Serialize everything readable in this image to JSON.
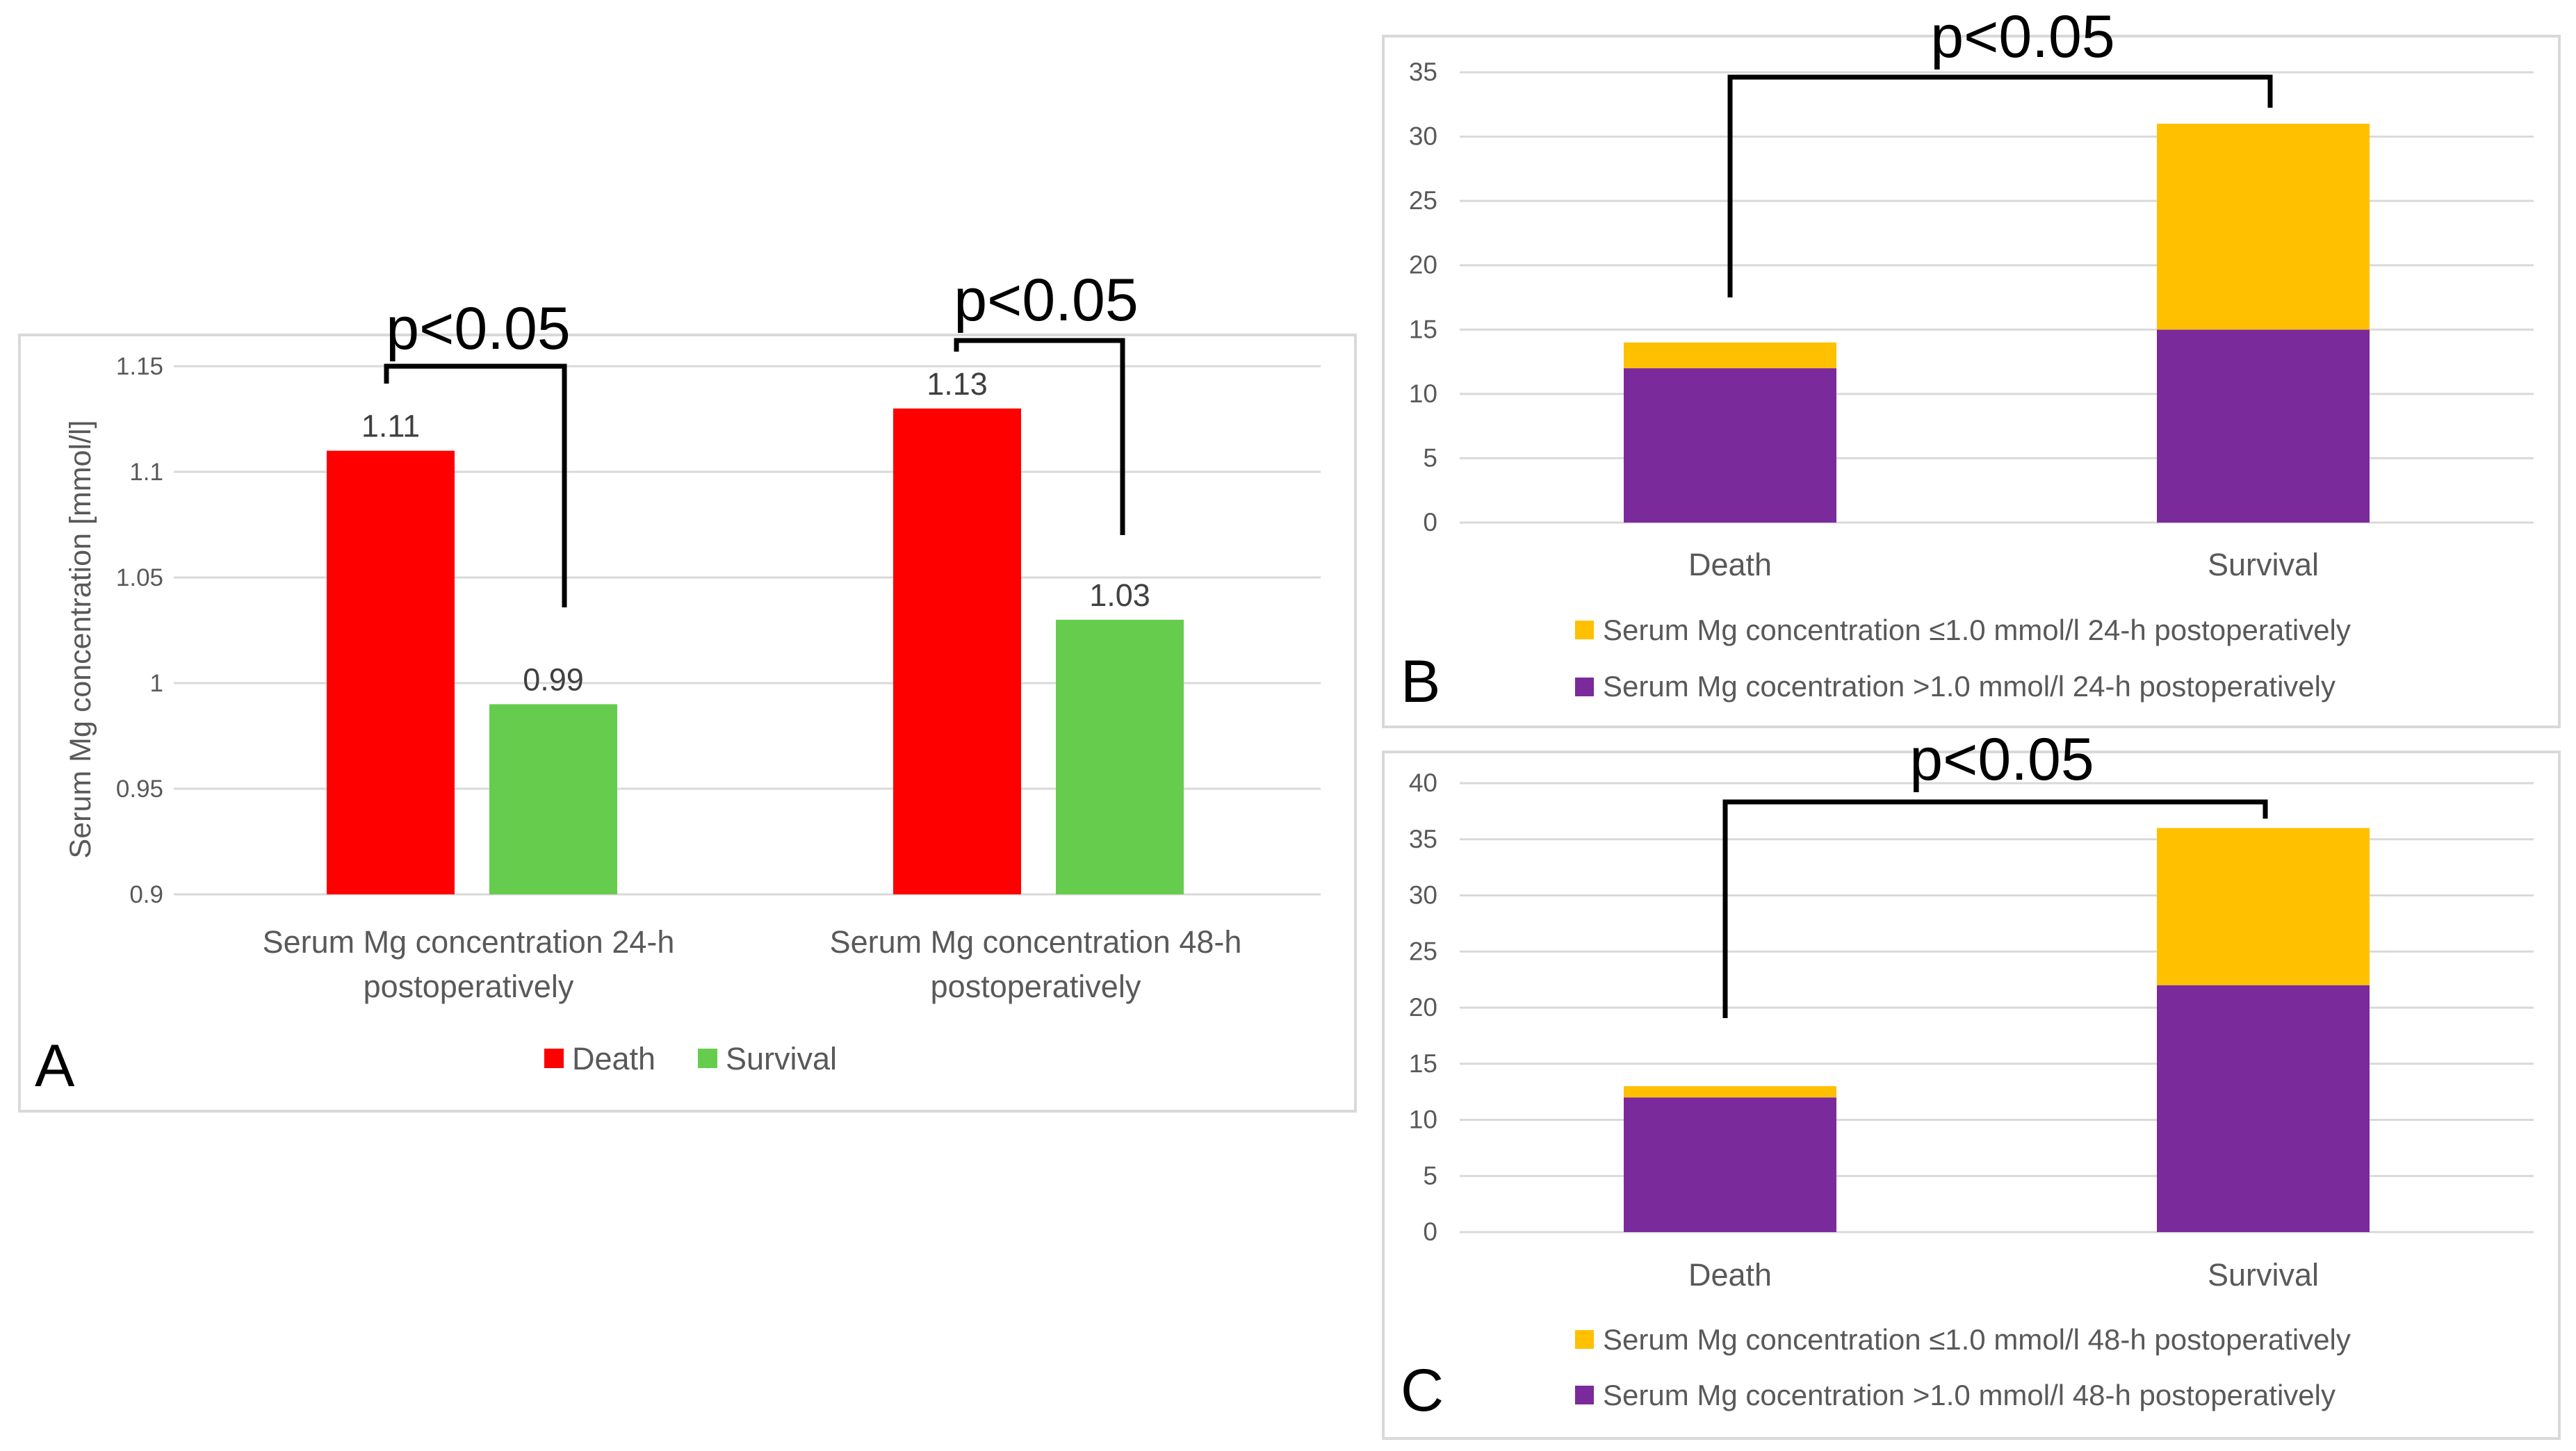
{
  "chart_data": [
    {
      "id": "A",
      "type": "bar",
      "panel_label": "A",
      "ylabel": "Serum Mg concentration [mmol/l]",
      "ylim": [
        0.9,
        1.15
      ],
      "yticks": [
        "0.9",
        "0.95",
        "1",
        "1.05",
        "1.1",
        "1.15"
      ],
      "grid": true,
      "categories": [
        [
          "Serum Mg concentration 24-h",
          "postoperatively"
        ],
        [
          "Serum Mg concentration 48-h",
          "postoperatively"
        ]
      ],
      "series": [
        {
          "name": "Death",
          "color": "#ff0000",
          "values": [
            1.11,
            1.13
          ],
          "labels": [
            "1.11",
            "1.13"
          ]
        },
        {
          "name": "Survival",
          "color": "#66cc4d",
          "values": [
            0.99,
            1.03
          ],
          "labels": [
            "0.99",
            "1.03"
          ]
        }
      ],
      "significance": [
        "p<0.05",
        "p<0.05"
      ],
      "legend": "bottom"
    },
    {
      "id": "B",
      "type": "bar",
      "stacked": true,
      "panel_label": "B",
      "ylim": [
        0,
        35
      ],
      "yticks": [
        "0",
        "5",
        "10",
        "15",
        "20",
        "25",
        "30",
        "35"
      ],
      "grid": true,
      "categories": [
        "Death",
        "Survival"
      ],
      "series": [
        {
          "name": "Serum Mg cocentration >1.0 mmol/l 24-h postoperatively",
          "color": "#7b2a9c",
          "values": [
            12,
            15
          ]
        },
        {
          "name": "Serum Mg concentration ≤1.0 mmol/l 24-h postoperatively",
          "color": "#ffc000",
          "values": [
            2,
            16
          ]
        }
      ],
      "legend_order": [
        1,
        0
      ],
      "significance": "p<0.05",
      "legend": "bottom"
    },
    {
      "id": "C",
      "type": "bar",
      "stacked": true,
      "panel_label": "C",
      "ylim": [
        0,
        40
      ],
      "yticks": [
        "0",
        "5",
        "10",
        "15",
        "20",
        "25",
        "30",
        "35",
        "40"
      ],
      "grid": true,
      "categories": [
        "Death",
        "Survival"
      ],
      "series": [
        {
          "name": "Serum Mg cocentration >1.0 mmol/l 48-h postoperatively",
          "color": "#7b2a9c",
          "values": [
            12,
            22
          ]
        },
        {
          "name": "Serum Mg concentration ≤1.0 mmol/l 48-h postoperatively",
          "color": "#ffc000",
          "values": [
            1,
            14
          ]
        }
      ],
      "legend_order": [
        1,
        0
      ],
      "significance": "p<0.05",
      "legend": "bottom"
    }
  ]
}
